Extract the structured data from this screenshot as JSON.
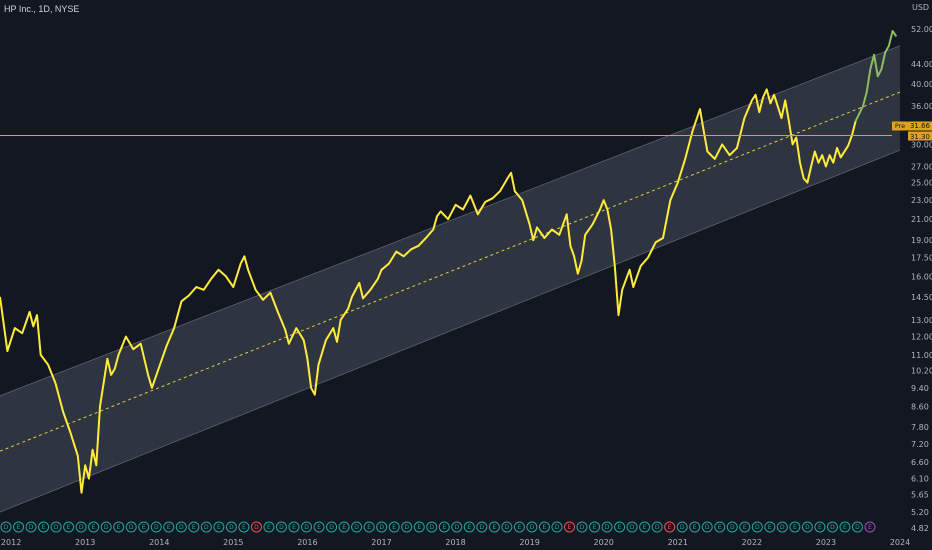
{
  "header": {
    "title": "HP Inc., 1D, NYSE"
  },
  "colors": {
    "background": "#131722",
    "line": "#ffeb3b",
    "recent": "#8fbc60",
    "channel": "#3a3f4c",
    "price_line": "#e0a31c",
    "pre_badge": "#e0a31c"
  },
  "chart_data": {
    "type": "line",
    "title": "HP Inc., 1D, NYSE",
    "currency": "USD",
    "scale": "log",
    "ylim": [
      4.82,
      52.0
    ],
    "y_ticks": [
      "52.00",
      "44.00",
      "40.00",
      "36.00",
      "32.00",
      "30.00",
      "27.00",
      "25.00",
      "23.00",
      "21.00",
      "19.00",
      "17.50",
      "16.00",
      "14.50",
      "13.00",
      "12.00",
      "11.00",
      "10.20",
      "9.40",
      "8.60",
      "7.80",
      "7.20",
      "6.60",
      "6.10",
      "5.65",
      "5.20",
      "4.82"
    ],
    "x_ticks": [
      "2012",
      "2013",
      "2014",
      "2015",
      "2016",
      "2017",
      "2018",
      "2019",
      "2020",
      "2021",
      "2022",
      "2023",
      "2024"
    ],
    "series": [
      {
        "points": [
          [
            2011.85,
            14.5
          ],
          [
            2011.95,
            11.2
          ],
          [
            2012.05,
            12.5
          ],
          [
            2012.15,
            12.2
          ],
          [
            2012.25,
            13.5
          ],
          [
            2012.3,
            12.6
          ],
          [
            2012.35,
            13.3
          ],
          [
            2012.4,
            11.0
          ],
          [
            2012.5,
            10.5
          ],
          [
            2012.6,
            9.6
          ],
          [
            2012.7,
            8.4
          ],
          [
            2012.8,
            7.6
          ],
          [
            2012.9,
            6.8
          ],
          [
            2012.95,
            5.7
          ],
          [
            2013.0,
            6.5
          ],
          [
            2013.05,
            6.1
          ],
          [
            2013.1,
            7.0
          ],
          [
            2013.15,
            6.5
          ],
          [
            2013.2,
            8.6
          ],
          [
            2013.3,
            10.8
          ],
          [
            2013.35,
            10.0
          ],
          [
            2013.4,
            10.3
          ],
          [
            2013.45,
            11.0
          ],
          [
            2013.55,
            12.0
          ],
          [
            2013.65,
            11.3
          ],
          [
            2013.75,
            11.6
          ],
          [
            2013.85,
            10.0
          ],
          [
            2013.9,
            9.4
          ],
          [
            2014.0,
            10.4
          ],
          [
            2014.1,
            11.5
          ],
          [
            2014.2,
            12.5
          ],
          [
            2014.3,
            14.2
          ],
          [
            2014.4,
            14.6
          ],
          [
            2014.5,
            15.2
          ],
          [
            2014.6,
            15.0
          ],
          [
            2014.7,
            15.8
          ],
          [
            2014.8,
            16.5
          ],
          [
            2014.9,
            16.0
          ],
          [
            2015.0,
            15.2
          ],
          [
            2015.1,
            17.0
          ],
          [
            2015.15,
            17.6
          ],
          [
            2015.2,
            16.5
          ],
          [
            2015.3,
            15.0
          ],
          [
            2015.4,
            14.3
          ],
          [
            2015.5,
            14.8
          ],
          [
            2015.6,
            13.5
          ],
          [
            2015.7,
            12.4
          ],
          [
            2015.75,
            11.6
          ],
          [
            2015.85,
            12.5
          ],
          [
            2015.95,
            11.8
          ],
          [
            2016.0,
            10.8
          ],
          [
            2016.05,
            9.4
          ],
          [
            2016.1,
            9.1
          ],
          [
            2016.15,
            10.5
          ],
          [
            2016.25,
            11.8
          ],
          [
            2016.35,
            12.5
          ],
          [
            2016.4,
            11.7
          ],
          [
            2016.45,
            13.0
          ],
          [
            2016.55,
            13.7
          ],
          [
            2016.6,
            14.5
          ],
          [
            2016.7,
            15.5
          ],
          [
            2016.75,
            14.4
          ],
          [
            2016.85,
            15.0
          ],
          [
            2016.95,
            15.8
          ],
          [
            2017.0,
            16.5
          ],
          [
            2017.1,
            17.0
          ],
          [
            2017.2,
            18.0
          ],
          [
            2017.3,
            17.6
          ],
          [
            2017.4,
            18.2
          ],
          [
            2017.5,
            18.5
          ],
          [
            2017.6,
            19.2
          ],
          [
            2017.7,
            20.0
          ],
          [
            2017.75,
            21.3
          ],
          [
            2017.8,
            21.8
          ],
          [
            2017.9,
            21.0
          ],
          [
            2018.0,
            22.5
          ],
          [
            2018.1,
            22.0
          ],
          [
            2018.2,
            23.5
          ],
          [
            2018.3,
            21.5
          ],
          [
            2018.4,
            22.8
          ],
          [
            2018.5,
            23.2
          ],
          [
            2018.6,
            24.0
          ],
          [
            2018.7,
            25.5
          ],
          [
            2018.75,
            26.2
          ],
          [
            2018.8,
            24.0
          ],
          [
            2018.9,
            23.0
          ],
          [
            2019.0,
            20.5
          ],
          [
            2019.05,
            19.0
          ],
          [
            2019.1,
            20.2
          ],
          [
            2019.2,
            19.2
          ],
          [
            2019.3,
            20.0
          ],
          [
            2019.4,
            19.5
          ],
          [
            2019.5,
            21.5
          ],
          [
            2019.55,
            18.5
          ],
          [
            2019.6,
            17.6
          ],
          [
            2019.65,
            16.2
          ],
          [
            2019.7,
            17.2
          ],
          [
            2019.75,
            19.5
          ],
          [
            2019.85,
            20.5
          ],
          [
            2019.95,
            22.0
          ],
          [
            2020.0,
            23.0
          ],
          [
            2020.05,
            22.0
          ],
          [
            2020.1,
            20.0
          ],
          [
            2020.15,
            16.8
          ],
          [
            2020.2,
            13.3
          ],
          [
            2020.25,
            15.0
          ],
          [
            2020.35,
            16.5
          ],
          [
            2020.4,
            15.2
          ],
          [
            2020.5,
            16.8
          ],
          [
            2020.6,
            17.5
          ],
          [
            2020.7,
            18.8
          ],
          [
            2020.8,
            19.2
          ],
          [
            2020.9,
            23.0
          ],
          [
            2021.0,
            25.0
          ],
          [
            2021.1,
            28.0
          ],
          [
            2021.2,
            32.0
          ],
          [
            2021.3,
            35.5
          ],
          [
            2021.35,
            32.0
          ],
          [
            2021.4,
            29.0
          ],
          [
            2021.5,
            28.0
          ],
          [
            2021.6,
            30.0
          ],
          [
            2021.7,
            28.5
          ],
          [
            2021.8,
            29.5
          ],
          [
            2021.9,
            34.0
          ],
          [
            2022.0,
            37.0
          ],
          [
            2022.05,
            38.0
          ],
          [
            2022.1,
            35.0
          ],
          [
            2022.15,
            37.5
          ],
          [
            2022.2,
            39.0
          ],
          [
            2022.25,
            36.5
          ],
          [
            2022.3,
            38.0
          ],
          [
            2022.4,
            34.0
          ],
          [
            2022.45,
            37.0
          ],
          [
            2022.5,
            33.5
          ],
          [
            2022.55,
            30.0
          ],
          [
            2022.6,
            31.0
          ],
          [
            2022.65,
            27.5
          ],
          [
            2022.7,
            25.5
          ],
          [
            2022.75,
            25.0
          ],
          [
            2022.8,
            27.0
          ],
          [
            2022.85,
            29.0
          ],
          [
            2022.9,
            27.5
          ],
          [
            2022.95,
            28.5
          ],
          [
            2023.0,
            27.0
          ],
          [
            2023.05,
            28.5
          ],
          [
            2023.1,
            27.5
          ],
          [
            2023.15,
            29.5
          ],
          [
            2023.2,
            28.2
          ],
          [
            2023.3,
            29.8
          ],
          [
            2023.35,
            31.3
          ],
          [
            2023.4,
            33.5
          ]
        ]
      },
      {
        "points": [
          [
            2023.4,
            33.5
          ],
          [
            2023.5,
            36.0
          ],
          [
            2023.55,
            38.5
          ],
          [
            2023.6,
            43.0
          ],
          [
            2023.65,
            46.0
          ],
          [
            2023.7,
            41.5
          ],
          [
            2023.75,
            43.0
          ],
          [
            2023.8,
            46.5
          ],
          [
            2023.85,
            48.0
          ],
          [
            2023.9,
            51.5
          ],
          [
            2023.95,
            50.2
          ]
        ]
      }
    ],
    "channel": {
      "upper": [
        [
          2011.85,
          9.05
        ],
        [
          2024.0,
          48.0
        ]
      ],
      "median": [
        [
          2011.85,
          6.95
        ],
        [
          2024.0,
          38.5
        ]
      ],
      "lower": [
        [
          2011.85,
          5.2
        ],
        [
          2024.0,
          29.2
        ]
      ]
    },
    "price_lines": [
      {
        "value": 31.3,
        "label": "31.30",
        "pre_label": "Pre",
        "pre_value": "31.66"
      }
    ],
    "events_row": {
      "labels": [
        "D",
        "E",
        "D",
        "E",
        "D",
        "E",
        "D",
        "E",
        "D",
        "E",
        "D",
        "E",
        "D",
        "E",
        "D",
        "E",
        "D",
        "E",
        "D",
        "E",
        "D",
        "E",
        "D",
        "E",
        "D",
        "E",
        "D",
        "E",
        "D",
        "E",
        "D",
        "E",
        "D",
        "E",
        "D",
        "E",
        "D",
        "E",
        "D",
        "E",
        "D",
        "E",
        "D",
        "E",
        "D",
        "E",
        "D",
        "E",
        "D",
        "E",
        "D",
        "E",
        "D",
        "E",
        "D",
        "E",
        "D",
        "E",
        "D",
        "E",
        "D",
        "E",
        "D",
        "E",
        "D",
        "E",
        "D",
        "E",
        "D",
        "E"
      ],
      "colors": [
        "#26a69a",
        "#26a69a",
        "#26a69a",
        "#26a69a",
        "#26a69a",
        "#26a69a",
        "#26a69a",
        "#26a69a",
        "#26a69a",
        "#26a69a",
        "#26a69a",
        "#26a69a",
        "#26a69a",
        "#26a69a",
        "#26a69a",
        "#26a69a",
        "#26a69a",
        "#26a69a",
        "#26a69a",
        "#26a69a",
        "#ef5350",
        "#26a69a",
        "#26a69a",
        "#26a69a",
        "#26a69a",
        "#26a69a",
        "#26a69a",
        "#26a69a",
        "#26a69a",
        "#26a69a",
        "#26a69a",
        "#26a69a",
        "#26a69a",
        "#26a69a",
        "#26a69a",
        "#26a69a",
        "#26a69a",
        "#26a69a",
        "#26a69a",
        "#26a69a",
        "#26a69a",
        "#26a69a",
        "#26a69a",
        "#26a69a",
        "#26a69a",
        "#ef5350",
        "#26a69a",
        "#26a69a",
        "#26a69a",
        "#26a69a",
        "#26a69a",
        "#26a69a",
        "#26a69a",
        "#ef5350",
        "#26a69a",
        "#26a69a",
        "#26a69a",
        "#26a69a",
        "#26a69a",
        "#26a69a",
        "#26a69a",
        "#26a69a",
        "#26a69a",
        "#26a69a",
        "#26a69a",
        "#26a69a",
        "#26a69a",
        "#26a69a",
        "#26a69a",
        "#ab47bc"
      ]
    }
  }
}
